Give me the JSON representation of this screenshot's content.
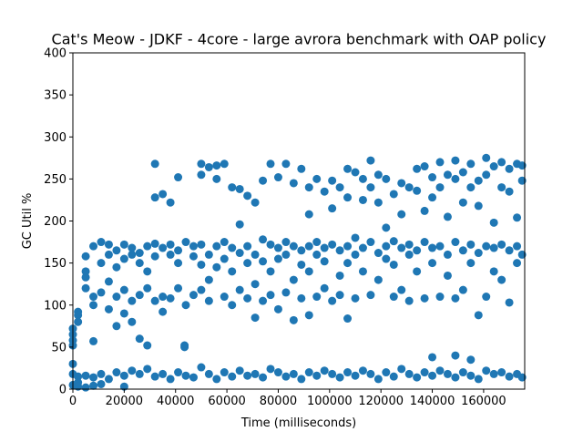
{
  "chart_data": {
    "type": "scatter",
    "title": "Cat's Meow - JDKF - 4core -  large avrora benchmark with OAP policy",
    "xlabel": "Time (milliseconds)",
    "ylabel": "GC Util %",
    "xlim": [
      0,
      176000
    ],
    "ylim": [
      0,
      400
    ],
    "xticks": [
      0,
      20000,
      40000,
      60000,
      80000,
      100000,
      120000,
      140000,
      160000
    ],
    "yticks": [
      0,
      50,
      100,
      150,
      200,
      250,
      300,
      350,
      400
    ],
    "xtick_labels": [
      "0",
      "20000",
      "40000",
      "60000",
      "80000",
      "100000",
      "120000",
      "140000",
      "160000"
    ],
    "ytick_labels": [
      "0",
      "50",
      "100",
      "150",
      "200",
      "250",
      "300",
      "350",
      "400"
    ],
    "grid": false,
    "legend": "none",
    "marker_color": "#1f77b4",
    "series": [
      {
        "points": [
          [
            0,
            65
          ],
          [
            0,
            58
          ],
          [
            0,
            72
          ],
          [
            0,
            52
          ],
          [
            0,
            30
          ],
          [
            0,
            18
          ],
          [
            0,
            5
          ],
          [
            2000,
            92
          ],
          [
            2000,
            88
          ],
          [
            2000,
            80
          ],
          [
            2000,
            15
          ],
          [
            2000,
            8
          ],
          [
            2000,
            3
          ],
          [
            5000,
            120
          ],
          [
            5000,
            133
          ],
          [
            5000,
            140
          ],
          [
            5000,
            158
          ],
          [
            5000,
            16
          ],
          [
            5000,
            2
          ],
          [
            8000,
            110
          ],
          [
            8000,
            170
          ],
          [
            8000,
            100
          ],
          [
            8000,
            57
          ],
          [
            8000,
            14
          ],
          [
            8000,
            4
          ],
          [
            11000,
            175
          ],
          [
            11000,
            150
          ],
          [
            11000,
            115
          ],
          [
            11000,
            18
          ],
          [
            11000,
            6
          ],
          [
            14000,
            172
          ],
          [
            14000,
            160
          ],
          [
            14000,
            128
          ],
          [
            14000,
            95
          ],
          [
            14000,
            12
          ],
          [
            17000,
            165
          ],
          [
            17000,
            145
          ],
          [
            17000,
            110
          ],
          [
            17000,
            75
          ],
          [
            17000,
            20
          ],
          [
            20000,
            172
          ],
          [
            20000,
            155
          ],
          [
            20000,
            118
          ],
          [
            20000,
            90
          ],
          [
            20000,
            16
          ],
          [
            20000,
            3
          ],
          [
            23000,
            168
          ],
          [
            23000,
            160
          ],
          [
            23000,
            105
          ],
          [
            23000,
            80
          ],
          [
            23000,
            22
          ],
          [
            26000,
            162
          ],
          [
            26000,
            150
          ],
          [
            26000,
            112
          ],
          [
            26000,
            60
          ],
          [
            26000,
            18
          ],
          [
            29000,
            170
          ],
          [
            29000,
            140
          ],
          [
            29000,
            120
          ],
          [
            29000,
            52
          ],
          [
            29000,
            24
          ],
          [
            32000,
            268
          ],
          [
            32000,
            228
          ],
          [
            32000,
            173
          ],
          [
            32000,
            158
          ],
          [
            32000,
            105
          ],
          [
            32000,
            15
          ],
          [
            35000,
            232
          ],
          [
            35000,
            168
          ],
          [
            35000,
            110
          ],
          [
            35000,
            92
          ],
          [
            35000,
            18
          ],
          [
            38000,
            222
          ],
          [
            38000,
            172
          ],
          [
            38000,
            160
          ],
          [
            38000,
            108
          ],
          [
            38000,
            12
          ],
          [
            41000,
            252
          ],
          [
            41000,
            165
          ],
          [
            41000,
            150
          ],
          [
            41000,
            120
          ],
          [
            41000,
            20
          ],
          [
            43500,
            50
          ],
          [
            43500,
            52
          ],
          [
            44000,
            175
          ],
          [
            44000,
            100
          ],
          [
            44000,
            16
          ],
          [
            47000,
            170
          ],
          [
            47000,
            158
          ],
          [
            47000,
            112
          ],
          [
            47000,
            14
          ],
          [
            50000,
            268
          ],
          [
            50000,
            255
          ],
          [
            50000,
            172
          ],
          [
            50000,
            148
          ],
          [
            50000,
            118
          ],
          [
            50000,
            26
          ],
          [
            53000,
            264
          ],
          [
            53000,
            160
          ],
          [
            53000,
            130
          ],
          [
            53000,
            105
          ],
          [
            53000,
            18
          ],
          [
            56000,
            266
          ],
          [
            56000,
            250
          ],
          [
            56000,
            170
          ],
          [
            56000,
            145
          ],
          [
            56000,
            12
          ],
          [
            59000,
            268
          ],
          [
            59000,
            175
          ],
          [
            59000,
            155
          ],
          [
            59000,
            110
          ],
          [
            59000,
            20
          ],
          [
            62000,
            240
          ],
          [
            62000,
            168
          ],
          [
            62000,
            140
          ],
          [
            62000,
            100
          ],
          [
            62000,
            15
          ],
          [
            65000,
            238
          ],
          [
            65000,
            196
          ],
          [
            65000,
            162
          ],
          [
            65000,
            118
          ],
          [
            65000,
            22
          ],
          [
            68000,
            230
          ],
          [
            68000,
            170
          ],
          [
            68000,
            150
          ],
          [
            68000,
            108
          ],
          [
            68000,
            16
          ],
          [
            71000,
            222
          ],
          [
            71000,
            160
          ],
          [
            71000,
            125
          ],
          [
            71000,
            85
          ],
          [
            71000,
            18
          ],
          [
            74000,
            248
          ],
          [
            74000,
            178
          ],
          [
            74000,
            152
          ],
          [
            74000,
            105
          ],
          [
            74000,
            14
          ],
          [
            77000,
            268
          ],
          [
            77000,
            172
          ],
          [
            77000,
            140
          ],
          [
            77000,
            112
          ],
          [
            77000,
            24
          ],
          [
            80000,
            252
          ],
          [
            80000,
            168
          ],
          [
            80000,
            155
          ],
          [
            80000,
            95
          ],
          [
            80000,
            20
          ],
          [
            83000,
            268
          ],
          [
            83000,
            175
          ],
          [
            83000,
            160
          ],
          [
            83000,
            115
          ],
          [
            83000,
            15
          ],
          [
            86000,
            245
          ],
          [
            86000,
            170
          ],
          [
            86000,
            130
          ],
          [
            86000,
            82
          ],
          [
            86000,
            18
          ],
          [
            89000,
            262
          ],
          [
            89000,
            165
          ],
          [
            89000,
            148
          ],
          [
            89000,
            108
          ],
          [
            89000,
            12
          ],
          [
            92000,
            240
          ],
          [
            92000,
            208
          ],
          [
            92000,
            170
          ],
          [
            92000,
            140
          ],
          [
            92000,
            88
          ],
          [
            92000,
            20
          ],
          [
            95000,
            250
          ],
          [
            95000,
            175
          ],
          [
            95000,
            160
          ],
          [
            95000,
            110
          ],
          [
            95000,
            16
          ],
          [
            98000,
            235
          ],
          [
            98000,
            168
          ],
          [
            98000,
            152
          ],
          [
            98000,
            120
          ],
          [
            98000,
            22
          ],
          [
            101000,
            248
          ],
          [
            101000,
            215
          ],
          [
            101000,
            172
          ],
          [
            101000,
            105
          ],
          [
            101000,
            18
          ],
          [
            104000,
            240
          ],
          [
            104000,
            165
          ],
          [
            104000,
            135
          ],
          [
            104000,
            112
          ],
          [
            104000,
            14
          ],
          [
            107000,
            262
          ],
          [
            107000,
            228
          ],
          [
            107000,
            170
          ],
          [
            107000,
            150
          ],
          [
            107000,
            84
          ],
          [
            107000,
            20
          ],
          [
            110000,
            258
          ],
          [
            110000,
            180
          ],
          [
            110000,
            160
          ],
          [
            110000,
            108
          ],
          [
            110000,
            16
          ],
          [
            113000,
            250
          ],
          [
            113000,
            225
          ],
          [
            113000,
            168
          ],
          [
            113000,
            140
          ],
          [
            113000,
            22
          ],
          [
            116000,
            272
          ],
          [
            116000,
            240
          ],
          [
            116000,
            175
          ],
          [
            116000,
            112
          ],
          [
            116000,
            18
          ],
          [
            119000,
            255
          ],
          [
            119000,
            222
          ],
          [
            119000,
            162
          ],
          [
            119000,
            130
          ],
          [
            119000,
            12
          ],
          [
            122000,
            250
          ],
          [
            122000,
            192
          ],
          [
            122000,
            170
          ],
          [
            122000,
            155
          ],
          [
            122000,
            20
          ],
          [
            125000,
            232
          ],
          [
            125000,
            176
          ],
          [
            125000,
            148
          ],
          [
            125000,
            110
          ],
          [
            125000,
            15
          ],
          [
            128000,
            245
          ],
          [
            128000,
            208
          ],
          [
            128000,
            168
          ],
          [
            128000,
            118
          ],
          [
            128000,
            24
          ],
          [
            131000,
            240
          ],
          [
            131000,
            172
          ],
          [
            131000,
            160
          ],
          [
            131000,
            105
          ],
          [
            131000,
            18
          ],
          [
            134000,
            262
          ],
          [
            134000,
            236
          ],
          [
            134000,
            165
          ],
          [
            134000,
            140
          ],
          [
            134000,
            14
          ],
          [
            137000,
            265
          ],
          [
            137000,
            212
          ],
          [
            137000,
            175
          ],
          [
            137000,
            108
          ],
          [
            137000,
            20
          ],
          [
            140000,
            252
          ],
          [
            140000,
            228
          ],
          [
            140000,
            168
          ],
          [
            140000,
            150
          ],
          [
            140000,
            38
          ],
          [
            140000,
            16
          ],
          [
            143000,
            270
          ],
          [
            143000,
            240
          ],
          [
            143000,
            170
          ],
          [
            143000,
            110
          ],
          [
            143000,
            22
          ],
          [
            146000,
            255
          ],
          [
            146000,
            205
          ],
          [
            146000,
            160
          ],
          [
            146000,
            135
          ],
          [
            146000,
            18
          ],
          [
            149000,
            272
          ],
          [
            149000,
            250
          ],
          [
            149000,
            175
          ],
          [
            149000,
            108
          ],
          [
            149000,
            40
          ],
          [
            149000,
            14
          ],
          [
            152000,
            258
          ],
          [
            152000,
            222
          ],
          [
            152000,
            165
          ],
          [
            152000,
            118
          ],
          [
            152000,
            20
          ],
          [
            155000,
            268
          ],
          [
            155000,
            240
          ],
          [
            155000,
            172
          ],
          [
            155000,
            150
          ],
          [
            155000,
            35
          ],
          [
            155000,
            16
          ],
          [
            158000,
            248
          ],
          [
            158000,
            218
          ],
          [
            158000,
            162
          ],
          [
            158000,
            88
          ],
          [
            158000,
            12
          ],
          [
            161000,
            275
          ],
          [
            161000,
            255
          ],
          [
            161000,
            170
          ],
          [
            161000,
            110
          ],
          [
            161000,
            22
          ],
          [
            164000,
            265
          ],
          [
            164000,
            198
          ],
          [
            164000,
            168
          ],
          [
            164000,
            140
          ],
          [
            164000,
            18
          ],
          [
            167000,
            270
          ],
          [
            167000,
            240
          ],
          [
            167000,
            172
          ],
          [
            167000,
            130
          ],
          [
            167000,
            20
          ],
          [
            170000,
            262
          ],
          [
            170000,
            235
          ],
          [
            170000,
            165
          ],
          [
            170000,
            103
          ],
          [
            170000,
            15
          ],
          [
            173000,
            268
          ],
          [
            173000,
            204
          ],
          [
            173000,
            170
          ],
          [
            173000,
            150
          ],
          [
            173000,
            18
          ],
          [
            175000,
            266
          ],
          [
            175000,
            248
          ],
          [
            175000,
            160
          ],
          [
            175000,
            14
          ]
        ]
      }
    ]
  }
}
